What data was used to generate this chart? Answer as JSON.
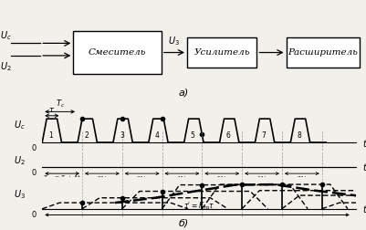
{
  "bg_color": "#f2f0eb",
  "box_texts": [
    "Смеситель",
    "Усилитель",
    "Расширитель"
  ],
  "title_a": "а)",
  "title_b": "б)",
  "Tc": 0.95,
  "tau": 0.52,
  "dt": 0.12,
  "T_total": 8.4,
  "rise": 0.12,
  "fall": 0.12,
  "K_tr": 7.5,
  "num_pulses": 8
}
